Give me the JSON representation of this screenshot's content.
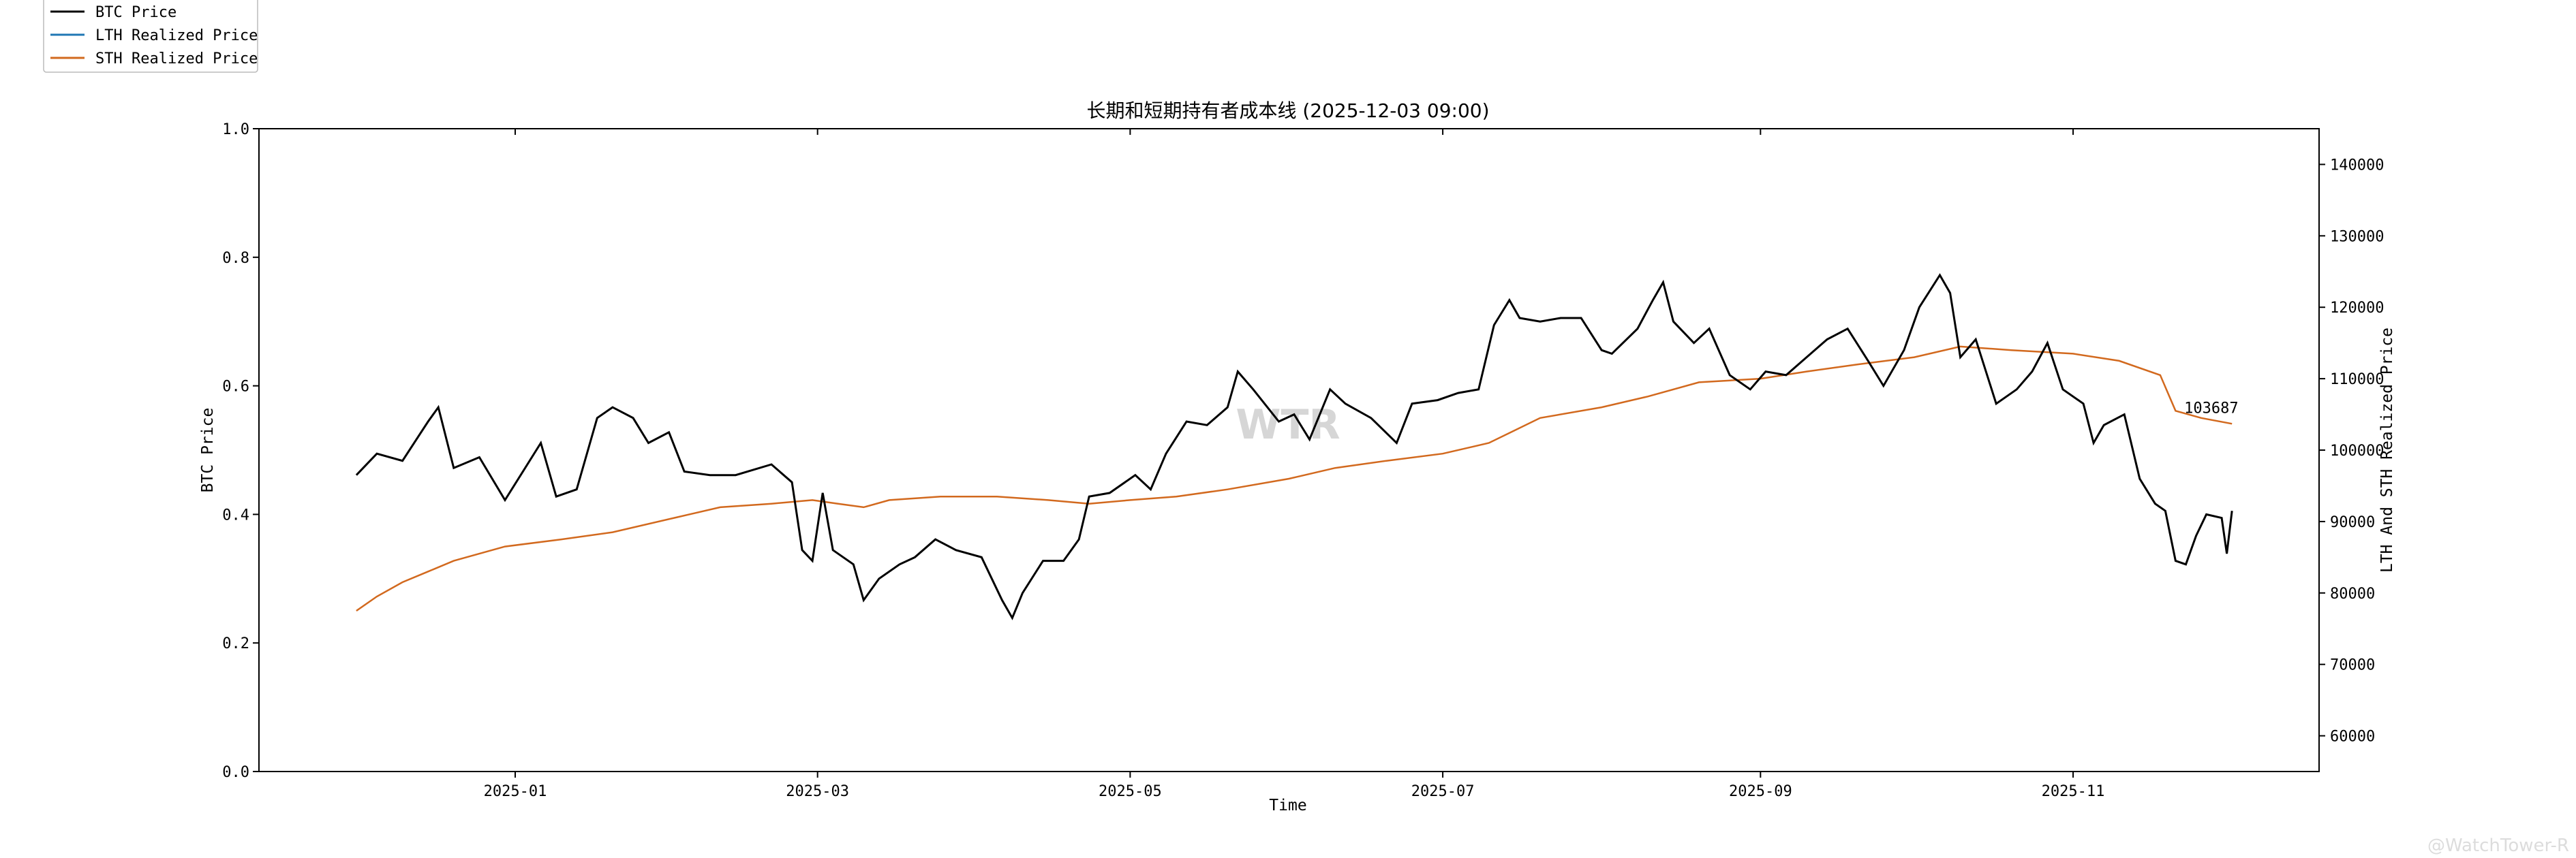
{
  "chart_data": {
    "type": "line",
    "title": "长期和短期持有者成本线 (2025-12-03 09:00)",
    "xlabel": "Time",
    "ylabel_left": "BTC Price",
    "ylabel_right": "LTH And STH Realized Price",
    "xlim": [
      "2024-11-12",
      "2025-12-19"
    ],
    "ylim_left": [
      0.0,
      1.0
    ],
    "ylim_right": [
      55000,
      145000
    ],
    "x_ticks": [
      "2025-01",
      "2025-03",
      "2025-05",
      "2025-07",
      "2025-09",
      "2025-11"
    ],
    "y_ticks_left": [
      "0.0",
      "0.2",
      "0.4",
      "0.6",
      "0.8",
      "1.0"
    ],
    "y_ticks_right": [
      "60000",
      "70000",
      "80000",
      "90000",
      "100000",
      "110000",
      "120000",
      "130000",
      "140000"
    ],
    "legend_position": "top-left",
    "grid": false,
    "watermark": "WTR",
    "footer_mark": "@WatchTower-R",
    "annotation": {
      "text": "103687",
      "series": "STH Realized Price"
    },
    "series": [
      {
        "name": "BTC Price",
        "color": "#000000",
        "axis": "right",
        "points": [
          [
            "2024-12-01",
            96500
          ],
          [
            "2024-12-05",
            99500
          ],
          [
            "2024-12-10",
            98500
          ],
          [
            "2024-12-15",
            104000
          ],
          [
            "2024-12-17",
            106000
          ],
          [
            "2024-12-20",
            97500
          ],
          [
            "2024-12-25",
            99000
          ],
          [
            "2024-12-30",
            93000
          ],
          [
            "2025-01-06",
            101000
          ],
          [
            "2025-01-09",
            93500
          ],
          [
            "2025-01-13",
            94500
          ],
          [
            "2025-01-17",
            104500
          ],
          [
            "2025-01-20",
            106000
          ],
          [
            "2025-01-24",
            104500
          ],
          [
            "2025-01-27",
            101000
          ],
          [
            "2025-01-31",
            102500
          ],
          [
            "2025-02-03",
            97000
          ],
          [
            "2025-02-08",
            96500
          ],
          [
            "2025-02-13",
            96500
          ],
          [
            "2025-02-20",
            98000
          ],
          [
            "2025-02-24",
            95500
          ],
          [
            "2025-02-26",
            86000
          ],
          [
            "2025-02-28",
            84500
          ],
          [
            "2025-03-02",
            94000
          ],
          [
            "2025-03-04",
            86000
          ],
          [
            "2025-03-08",
            84000
          ],
          [
            "2025-03-10",
            79000
          ],
          [
            "2025-03-13",
            82000
          ],
          [
            "2025-03-17",
            84000
          ],
          [
            "2025-03-20",
            85000
          ],
          [
            "2025-03-24",
            87500
          ],
          [
            "2025-03-28",
            86000
          ],
          [
            "2025-04-02",
            85000
          ],
          [
            "2025-04-06",
            79000
          ],
          [
            "2025-04-08",
            76500
          ],
          [
            "2025-04-10",
            80000
          ],
          [
            "2025-04-14",
            84500
          ],
          [
            "2025-04-18",
            84500
          ],
          [
            "2025-04-21",
            87500
          ],
          [
            "2025-04-23",
            93500
          ],
          [
            "2025-04-27",
            94000
          ],
          [
            "2025-05-02",
            96500
          ],
          [
            "2025-05-05",
            94500
          ],
          [
            "2025-05-08",
            99500
          ],
          [
            "2025-05-12",
            104000
          ],
          [
            "2025-05-16",
            103500
          ],
          [
            "2025-05-20",
            106000
          ],
          [
            "2025-05-22",
            111000
          ],
          [
            "2025-05-25",
            108500
          ],
          [
            "2025-05-30",
            104000
          ],
          [
            "2025-06-02",
            105000
          ],
          [
            "2025-06-05",
            101500
          ],
          [
            "2025-06-09",
            108500
          ],
          [
            "2025-06-12",
            106500
          ],
          [
            "2025-06-17",
            104500
          ],
          [
            "2025-06-22",
            101000
          ],
          [
            "2025-06-25",
            106500
          ],
          [
            "2025-06-30",
            107000
          ],
          [
            "2025-07-04",
            108000
          ],
          [
            "2025-07-08",
            108500
          ],
          [
            "2025-07-11",
            117500
          ],
          [
            "2025-07-14",
            121000
          ],
          [
            "2025-07-16",
            118500
          ],
          [
            "2025-07-20",
            118000
          ],
          [
            "2025-07-24",
            118500
          ],
          [
            "2025-07-28",
            118500
          ],
          [
            "2025-08-01",
            114000
          ],
          [
            "2025-08-03",
            113500
          ],
          [
            "2025-08-08",
            117000
          ],
          [
            "2025-08-11",
            121000
          ],
          [
            "2025-08-13",
            123500
          ],
          [
            "2025-08-15",
            118000
          ],
          [
            "2025-08-19",
            115000
          ],
          [
            "2025-08-22",
            117000
          ],
          [
            "2025-08-26",
            110500
          ],
          [
            "2025-08-30",
            108500
          ],
          [
            "2025-09-02",
            111000
          ],
          [
            "2025-09-06",
            110500
          ],
          [
            "2025-09-10",
            113000
          ],
          [
            "2025-09-14",
            115500
          ],
          [
            "2025-09-18",
            117000
          ],
          [
            "2025-09-22",
            112500
          ],
          [
            "2025-09-25",
            109000
          ],
          [
            "2025-09-29",
            114000
          ],
          [
            "2025-10-02",
            120000
          ],
          [
            "2025-10-06",
            124500
          ],
          [
            "2025-10-08",
            122000
          ],
          [
            "2025-10-10",
            113000
          ],
          [
            "2025-10-13",
            115500
          ],
          [
            "2025-10-17",
            106500
          ],
          [
            "2025-10-21",
            108500
          ],
          [
            "2025-10-24",
            111000
          ],
          [
            "2025-10-27",
            115000
          ],
          [
            "2025-10-30",
            108500
          ],
          [
            "2025-11-03",
            106500
          ],
          [
            "2025-11-05",
            101000
          ],
          [
            "2025-11-07",
            103500
          ],
          [
            "2025-11-11",
            105000
          ],
          [
            "2025-11-14",
            96000
          ],
          [
            "2025-11-17",
            92500
          ],
          [
            "2025-11-19",
            91500
          ],
          [
            "2025-11-21",
            84500
          ],
          [
            "2025-11-23",
            84000
          ],
          [
            "2025-11-25",
            88000
          ],
          [
            "2025-11-27",
            91000
          ],
          [
            "2025-11-30",
            90500
          ],
          [
            "2025-12-01",
            85500
          ],
          [
            "2025-12-02",
            91500
          ]
        ]
      },
      {
        "name": "LTH Realized Price",
        "color": "#1f77b4",
        "axis": "right",
        "points": []
      },
      {
        "name": "STH Realized Price",
        "color": "#d2691e",
        "axis": "right",
        "points": [
          [
            "2024-12-01",
            77500
          ],
          [
            "2024-12-05",
            79500
          ],
          [
            "2024-12-10",
            81500
          ],
          [
            "2024-12-15",
            83000
          ],
          [
            "2024-12-20",
            84500
          ],
          [
            "2024-12-30",
            86500
          ],
          [
            "2025-01-10",
            87500
          ],
          [
            "2025-01-20",
            88500
          ],
          [
            "2025-02-01",
            90500
          ],
          [
            "2025-02-10",
            92000
          ],
          [
            "2025-02-20",
            92500
          ],
          [
            "2025-02-28",
            93000
          ],
          [
            "2025-03-05",
            92500
          ],
          [
            "2025-03-10",
            92000
          ],
          [
            "2025-03-15",
            93000
          ],
          [
            "2025-03-25",
            93500
          ],
          [
            "2025-04-05",
            93500
          ],
          [
            "2025-04-15",
            93000
          ],
          [
            "2025-04-23",
            92500
          ],
          [
            "2025-05-01",
            93000
          ],
          [
            "2025-05-10",
            93500
          ],
          [
            "2025-05-20",
            94500
          ],
          [
            "2025-06-01",
            96000
          ],
          [
            "2025-06-10",
            97500
          ],
          [
            "2025-06-20",
            98500
          ],
          [
            "2025-07-01",
            99500
          ],
          [
            "2025-07-10",
            101000
          ],
          [
            "2025-07-20",
            104500
          ],
          [
            "2025-08-01",
            106000
          ],
          [
            "2025-08-10",
            107500
          ],
          [
            "2025-08-20",
            109500
          ],
          [
            "2025-09-01",
            110000
          ],
          [
            "2025-09-10",
            111000
          ],
          [
            "2025-09-20",
            112000
          ],
          [
            "2025-10-01",
            113000
          ],
          [
            "2025-10-10",
            114500
          ],
          [
            "2025-10-20",
            114000
          ],
          [
            "2025-11-01",
            113500
          ],
          [
            "2025-11-10",
            112500
          ],
          [
            "2025-11-18",
            110500
          ],
          [
            "2025-11-21",
            105500
          ],
          [
            "2025-11-26",
            104500
          ],
          [
            "2025-12-02",
            103687
          ]
        ]
      }
    ]
  }
}
